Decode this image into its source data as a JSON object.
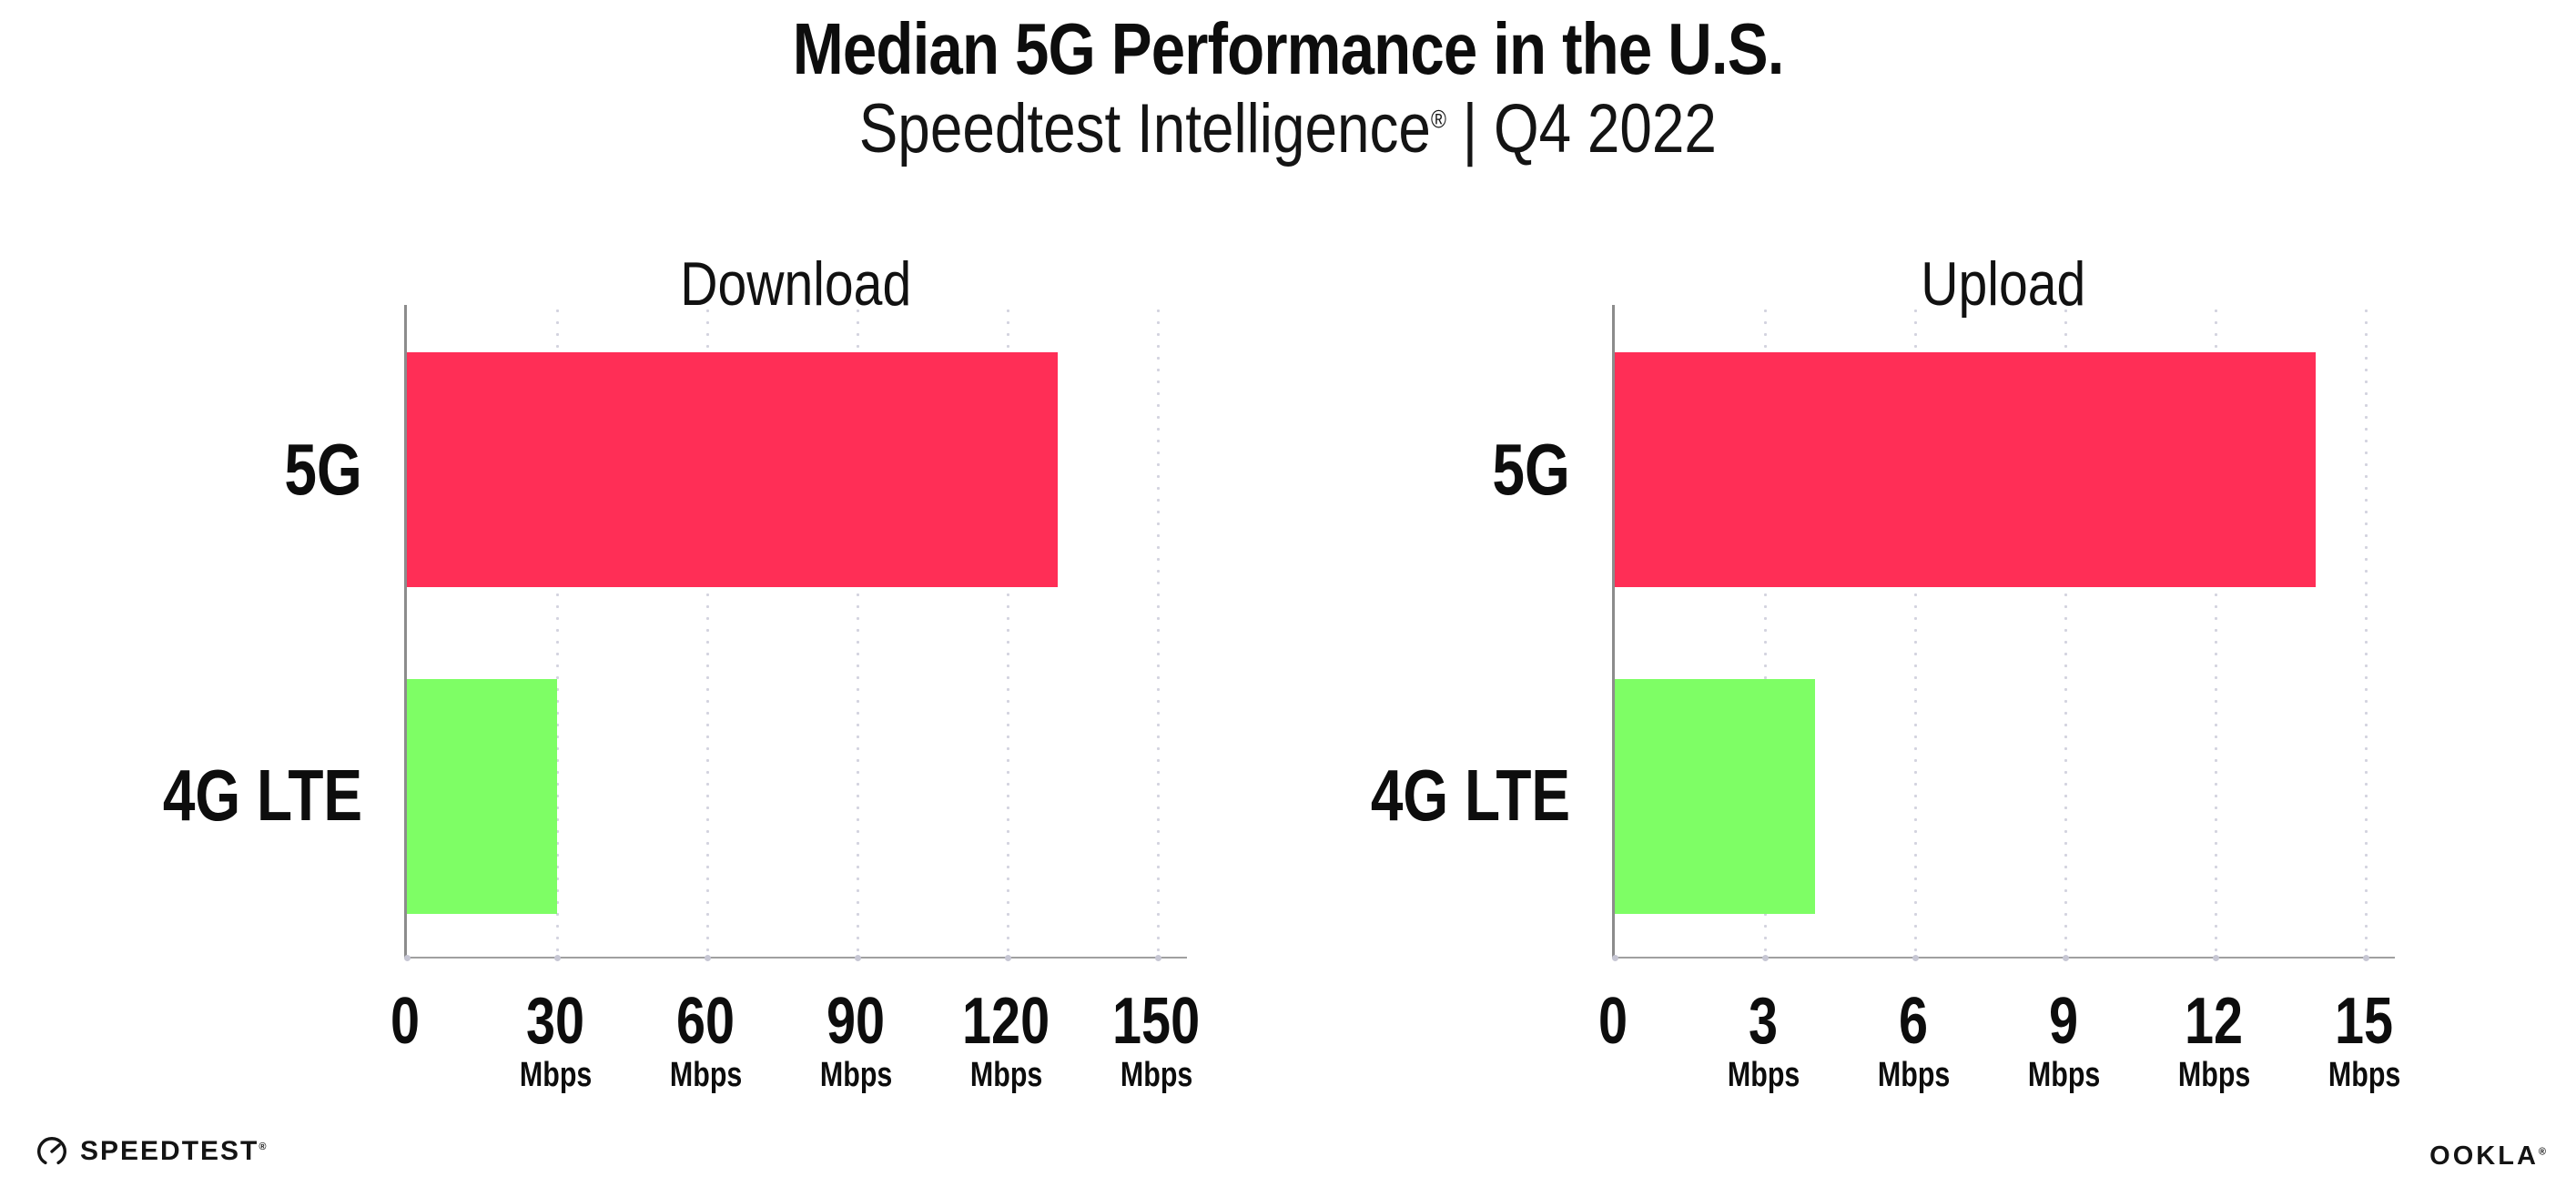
{
  "header": {
    "title": "Median 5G Performance in the U.S.",
    "subtitle": {
      "brand": "Speedtest Intelligence",
      "reg": "®",
      "rest": " | Q4 2022"
    }
  },
  "footer": {
    "speedtest": {
      "label": "SPEEDTEST",
      "reg": "®"
    },
    "ookla": {
      "label": "OOKLA",
      "reg": "®"
    }
  },
  "colors": {
    "bar_5g": "#FF2E56",
    "bar_4g_lte": "#7EFE65",
    "axis_x": "#A0A0A0",
    "axis_y": "#8C8C8C",
    "grid_dots": "#D3D3DF",
    "text": "#111111"
  },
  "chart_data": [
    {
      "type": "bar",
      "orientation": "horizontal",
      "title": "Download",
      "categories": [
        "5G",
        "4G LTE"
      ],
      "values": [
        130,
        30
      ],
      "unit": "Mbps",
      "xlim": [
        0,
        150
      ],
      "xticks": [
        0,
        30,
        60,
        90,
        120,
        150
      ],
      "bar_colors": [
        "#FF2E56",
        "#7EFE65"
      ],
      "grid": "vertical-dotted",
      "legend": "none",
      "data_labels": false
    },
    {
      "type": "bar",
      "orientation": "horizontal",
      "title": "Upload",
      "categories": [
        "5G",
        "4G LTE"
      ],
      "values": [
        14,
        4
      ],
      "unit": "Mbps",
      "xlim": [
        0,
        15
      ],
      "xticks": [
        0,
        3,
        6,
        9,
        12,
        15
      ],
      "bar_colors": [
        "#FF2E56",
        "#7EFE65"
      ],
      "grid": "vertical-dotted",
      "legend": "none",
      "data_labels": false
    }
  ]
}
